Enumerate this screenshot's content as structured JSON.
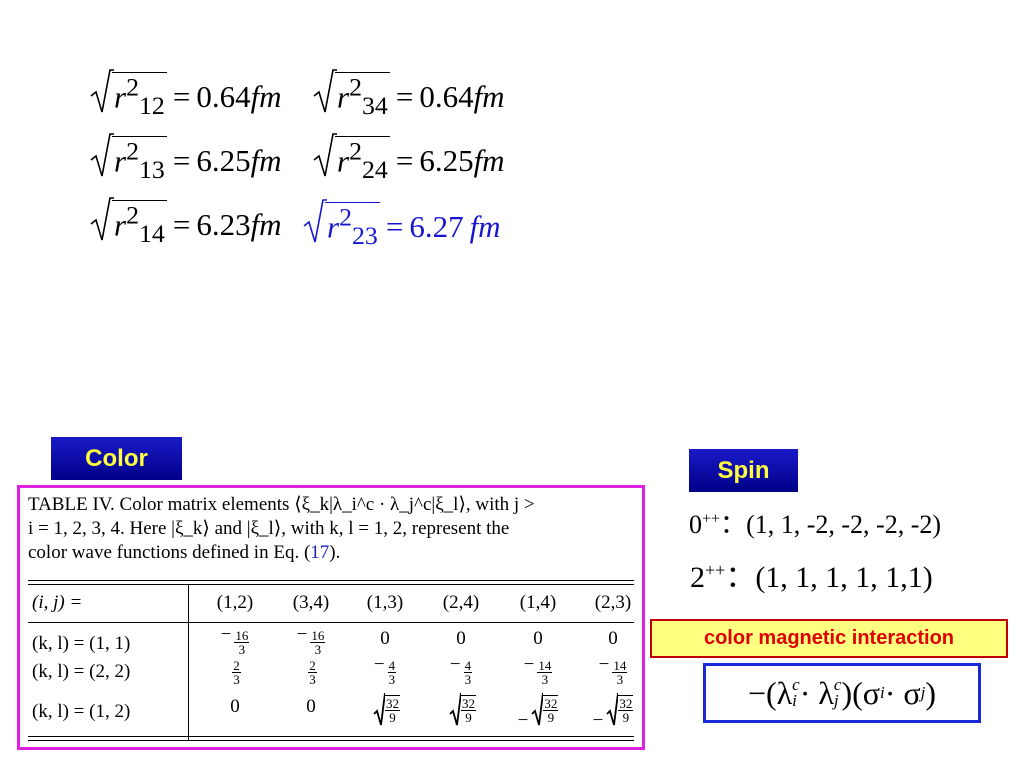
{
  "radii": {
    "r12": {
      "label_sub": "12",
      "value": "0.64",
      "unit": "fm"
    },
    "r34": {
      "label_sub": "34",
      "value": "0.64",
      "unit": "fm"
    },
    "r13": {
      "label_sub": "13",
      "value": "6.25",
      "unit": "fm"
    },
    "r24": {
      "label_sub": "24",
      "value": "6.25",
      "unit": "fm"
    },
    "r14": {
      "label_sub": "14",
      "value": "6.23",
      "unit": "fm"
    },
    "r23": {
      "label_sub": "23",
      "value": "6.27",
      "unit": "fm"
    },
    "sup": "2",
    "var": "r",
    "equals": "="
  },
  "labels": {
    "color": "Color",
    "spin": "Spin",
    "color_magnetic": "color magnetic interaction"
  },
  "table": {
    "caption_line1": "TABLE IV.   Color matrix elements ⟨ξ_k|λ_i^c · λ_j^c|ξ_l⟩, with j >",
    "caption_line2": "i = 1, 2, 3, 4. Here |ξ_k⟩ and |ξ_l⟩, with k, l = 1, 2, represent the",
    "caption_line3_a": "color wave functions defined in Eq. (",
    "caption_line3_ref": "17",
    "caption_line3_b": ").",
    "header_label": "(i, j) =",
    "columns": [
      "(1,2)",
      "(3,4)",
      "(1,3)",
      "(2,4)",
      "(1,4)",
      "(2,3)"
    ],
    "row_labels": [
      "(k, l) = (1, 1)",
      "(k, l) = (2, 2)",
      "(k, l) = (1, 2)"
    ],
    "row1": [
      {
        "sign": "−",
        "num": "16",
        "den": "3"
      },
      {
        "sign": "−",
        "num": "16",
        "den": "3"
      },
      {
        "text": "0"
      },
      {
        "text": "0"
      },
      {
        "text": "0"
      },
      {
        "text": "0"
      }
    ],
    "row2": [
      {
        "sign": "",
        "num": "2",
        "den": "3"
      },
      {
        "sign": "",
        "num": "2",
        "den": "3"
      },
      {
        "sign": "−",
        "num": "4",
        "den": "3"
      },
      {
        "sign": "−",
        "num": "4",
        "den": "3"
      },
      {
        "sign": "−",
        "num": "14",
        "den": "3"
      },
      {
        "sign": "−",
        "num": "14",
        "den": "3"
      }
    ],
    "row3": [
      {
        "text": "0"
      },
      {
        "text": "0"
      },
      {
        "sign": "",
        "num": "32",
        "den": "9",
        "sqrt": true
      },
      {
        "sign": "",
        "num": "32",
        "den": "9",
        "sqrt": true
      },
      {
        "sign": "−",
        "num": "32",
        "den": "9",
        "sqrt": true
      },
      {
        "sign": "−",
        "num": "32",
        "den": "9",
        "sqrt": true
      }
    ]
  },
  "spin": {
    "state0_label": "0",
    "state0_sup": "++",
    "state0_values": "(1, 1, -2, -2, -2, -2)",
    "state2_label": "2",
    "state2_sup": "++",
    "state2_values": "(1, 1, 1, 1, 1,1)",
    "colon": "："
  },
  "formula": {
    "text_a": "−(λ",
    "sub_i": "i",
    "sup_c": "c",
    "dot": " · λ",
    "sub_j": "j",
    "text_b": ")(σ",
    "text_c": " · σ",
    "text_d": ")"
  },
  "colors": {
    "blue_text": "#1616d0",
    "label_yellow": "#ffff40",
    "frame_magenta": "#e020e0",
    "cmi_red": "#e00000"
  }
}
